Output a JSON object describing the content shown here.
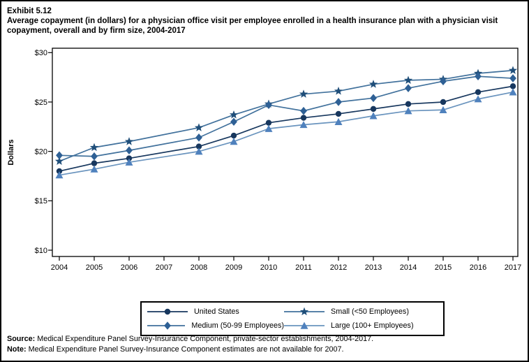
{
  "page": {
    "exhibit_label": "Exhibit 5.12",
    "title": "Average copayment (in dollars) for a physician office visit per employee enrolled in a health insurance plan with a physician visit copayment, overall and by firm size, 2004-2017"
  },
  "footer": {
    "source_label": "Source:",
    "source_text": " Medical Expenditure Panel Survey-Insurance Component, private-sector establishments, 2004-2017.",
    "note_label": "Note:",
    "note_text": " Medical Expenditure Panel Survey-Insurance Component estimates are not available for 2007."
  },
  "chart_data": {
    "type": "line",
    "title": "Average copayment (in dollars) for a physician office visit per employee enrolled in a health insurance plan with a physician visit copayment, overall and by firm size, 2004-2017",
    "xlabel": "",
    "ylabel": "Dollars",
    "x": [
      2004,
      2005,
      2006,
      2007,
      2008,
      2009,
      2010,
      2011,
      2012,
      2013,
      2014,
      2015,
      2016,
      2017
    ],
    "x_tick_labels": [
      "2004",
      "2005",
      "2006",
      "2007",
      "2008",
      "2009",
      "2010",
      "2011",
      "2012",
      "2013",
      "2014",
      "2015",
      "2016",
      "2017"
    ],
    "ylim": [
      10,
      30
    ],
    "ytick_values": [
      10,
      15,
      20,
      25,
      30
    ],
    "ytick_labels": [
      "$10",
      "$15",
      "$20",
      "$25",
      "$30"
    ],
    "grid": false,
    "legend_position": "bottom",
    "missing_data_note": "No estimates for 2007",
    "frame_color": "#000000",
    "series": [
      {
        "name": "United States",
        "marker": "circle",
        "marker_color": "#17375E",
        "line_color": "#17375E",
        "values": [
          18.0,
          18.8,
          19.3,
          null,
          20.5,
          21.6,
          22.9,
          23.4,
          23.8,
          24.3,
          24.8,
          25.0,
          26.0,
          26.6
        ]
      },
      {
        "name": "Small (<50 Employees)",
        "marker": "star",
        "marker_color": "#1F4E79",
        "line_color": "#41719C",
        "values": [
          19.0,
          20.4,
          21.0,
          null,
          22.4,
          23.7,
          24.8,
          25.8,
          26.1,
          26.8,
          27.2,
          27.3,
          27.9,
          28.2
        ]
      },
      {
        "name": "Medium (50-99 Employees)",
        "marker": "diamond",
        "marker_color": "#2E6095",
        "line_color": "#41719C",
        "values": [
          19.6,
          19.5,
          20.1,
          null,
          21.4,
          23.0,
          24.7,
          24.1,
          25.0,
          25.4,
          26.4,
          27.1,
          27.6,
          27.4
        ]
      },
      {
        "name": "Large (100+ Employees)",
        "marker": "triangle",
        "marker_color": "#4F81BD",
        "line_color": "#6A94BE",
        "values": [
          17.6,
          18.2,
          18.9,
          null,
          20.0,
          21.0,
          22.3,
          22.7,
          23.0,
          23.6,
          24.1,
          24.2,
          25.3,
          26.0
        ]
      }
    ],
    "legend_order": [
      0,
      1,
      2,
      3
    ]
  }
}
